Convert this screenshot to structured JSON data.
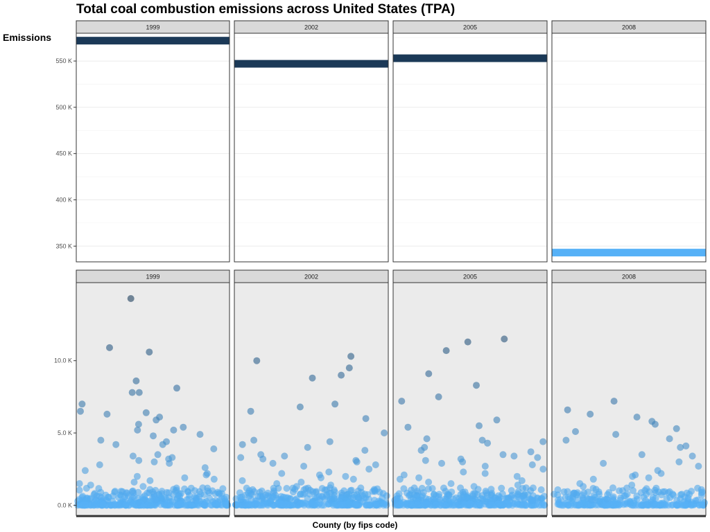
{
  "title": "Total coal combustion emissions across United States (TPA)",
  "ylabel": "Emissions",
  "xlabel": "County (by fips code)",
  "chart_data": [
    {
      "type": "bar",
      "orientation": "horizontal-band",
      "facets": [
        "1999",
        "2002",
        "2005",
        "2008"
      ],
      "values": [
        572000,
        547000,
        553000,
        343000
      ],
      "ylim": [
        333000,
        580000
      ],
      "yticks": [
        350000,
        400000,
        450000,
        500000,
        550000
      ],
      "ytick_labels": [
        "350 K",
        "400 K",
        "450 K",
        "500 K",
        "550 K"
      ],
      "colors": [
        "#1b3957",
        "#1b3957",
        "#1b3957",
        "#56b1f7"
      ],
      "grid": true,
      "ylabel": "Emissions"
    },
    {
      "type": "scatter",
      "facets": [
        "1999",
        "2002",
        "2005",
        "2008"
      ],
      "ylim": [
        -700,
        15400
      ],
      "yticks": [
        0,
        5000,
        10000
      ],
      "ytick_labels": [
        "0.0 K",
        "5.0 K",
        "10.0 K"
      ],
      "grid": false,
      "xlabel": "County (by fips code)",
      "color_low": "#56b1f7",
      "color_high": "#1b3957",
      "series": [
        {
          "name": "1999",
          "y": [
            14300,
            10900,
            10600,
            8600,
            8100,
            7800,
            7800,
            7000,
            6500,
            6400,
            6300,
            6100,
            5900,
            5600,
            5400,
            5200,
            5200,
            4900,
            4800,
            4500,
            4400,
            4200,
            4200,
            3900,
            3500,
            3400,
            3300,
            3200,
            3100,
            3000,
            2900,
            2800,
            2600,
            2400,
            2200,
            2100,
            2000,
            1900,
            1800,
            1700,
            1600,
            1500,
            1400,
            1300,
            1200,
            1100,
            1000
          ]
        },
        {
          "name": "2002",
          "y": [
            10300,
            10000,
            9500,
            9000,
            8800,
            7000,
            6800,
            6500,
            6000,
            5000,
            4500,
            4400,
            4200,
            4000,
            3800,
            3500,
            3400,
            3300,
            3200,
            3100,
            3000,
            2900,
            2800,
            2700,
            2500,
            2300,
            2200,
            2100,
            2000,
            1900,
            1800,
            1700,
            1600,
            1500,
            1400,
            1300,
            1200,
            1100,
            1000
          ]
        },
        {
          "name": "2005",
          "y": [
            11500,
            11300,
            10700,
            9100,
            8300,
            7500,
            7200,
            5900,
            5500,
            5400,
            4600,
            4500,
            4400,
            4300,
            4000,
            3800,
            3700,
            3500,
            3400,
            3300,
            3200,
            3100,
            3000,
            2900,
            2800,
            2700,
            2500,
            2300,
            2200,
            2100,
            2000,
            1900,
            1800,
            1700,
            1600,
            1500,
            1400,
            1300,
            1200,
            1100
          ]
        },
        {
          "name": "2008",
          "y": [
            7200,
            6600,
            6300,
            6100,
            5800,
            5600,
            5300,
            5100,
            4900,
            4600,
            4500,
            4100,
            4000,
            3500,
            3400,
            3000,
            2900,
            2700,
            2400,
            2200,
            2100,
            2000,
            1900,
            1800,
            1500,
            1400,
            1300,
            1200,
            1100,
            1000
          ]
        }
      ]
    }
  ]
}
